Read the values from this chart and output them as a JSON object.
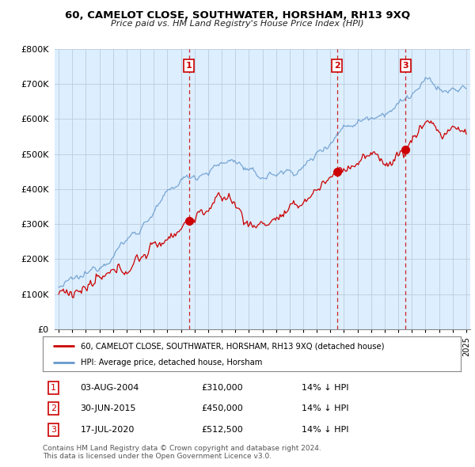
{
  "title": "60, CAMELOT CLOSE, SOUTHWATER, HORSHAM, RH13 9XQ",
  "subtitle": "Price paid vs. HM Land Registry's House Price Index (HPI)",
  "legend_line1": "60, CAMELOT CLOSE, SOUTHWATER, HORSHAM, RH13 9XQ (detached house)",
  "legend_line2": "HPI: Average price, detached house, Horsham",
  "transactions": [
    {
      "num": 1,
      "date": "03-AUG-2004",
      "price": 310000,
      "pct": "14%",
      "dir": "↓",
      "label": "1",
      "x_year": 2004.59
    },
    {
      "num": 2,
      "date": "30-JUN-2015",
      "price": 450000,
      "pct": "14%",
      "dir": "↓",
      "label": "2",
      "x_year": 2015.49
    },
    {
      "num": 3,
      "date": "17-JUL-2020",
      "price": 512500,
      "pct": "14%",
      "dir": "↓",
      "label": "3",
      "x_year": 2020.54
    }
  ],
  "footnote1": "Contains HM Land Registry data © Crown copyright and database right 2024.",
  "footnote2": "This data is licensed under the Open Government Licence v3.0.",
  "red_color": "#cc0000",
  "blue_color": "#6699cc",
  "chart_bg": "#ddeeff",
  "background_color": "#ffffff",
  "grid_color": "#cccccc",
  "ylim_min": 0,
  "ylim_max": 800000,
  "xlim_min": 1994.7,
  "xlim_max": 2025.3
}
